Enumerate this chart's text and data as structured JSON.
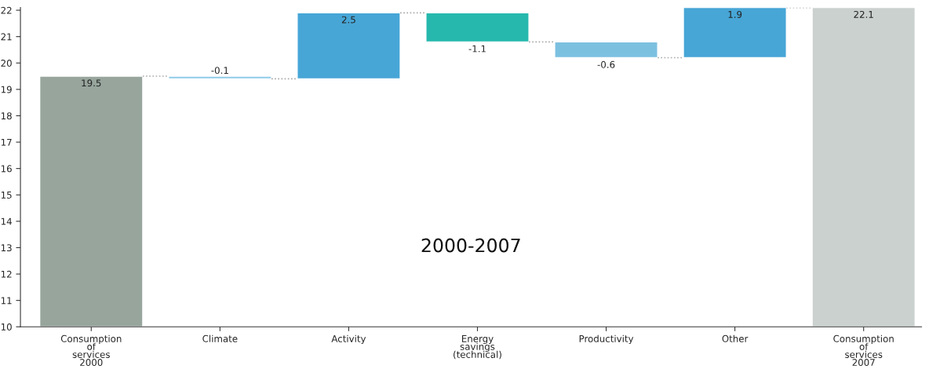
{
  "chart_data": {
    "type": "bar",
    "categories": [
      "Consumption\nof\nservices\n2000",
      "Climate",
      "Activity",
      "Energy\nsavings\n(technical)",
      "Productivity",
      "Other",
      "Consumption\nof\nservices\n2007"
    ],
    "values": [
      19.5,
      -0.1,
      2.5,
      -1.1,
      -0.6,
      1.9,
      22.1
    ],
    "base": [
      null,
      19.5,
      19.4,
      21.9,
      20.8,
      20.2,
      null
    ],
    "colors": [
      "#97a59d",
      "#8fcbe8",
      "#47a6d6",
      "#26b8ad",
      "#7cc0e0",
      "#47a6d6",
      "#cbd1cf"
    ],
    "data_labels": true,
    "ylim": [
      10,
      22.1
    ],
    "yticks": [
      10,
      11,
      12,
      13,
      14,
      15,
      16,
      17,
      18,
      19,
      20,
      21,
      22
    ],
    "grid": false,
    "legend": false,
    "annotations": [
      "2000-2007"
    ]
  }
}
